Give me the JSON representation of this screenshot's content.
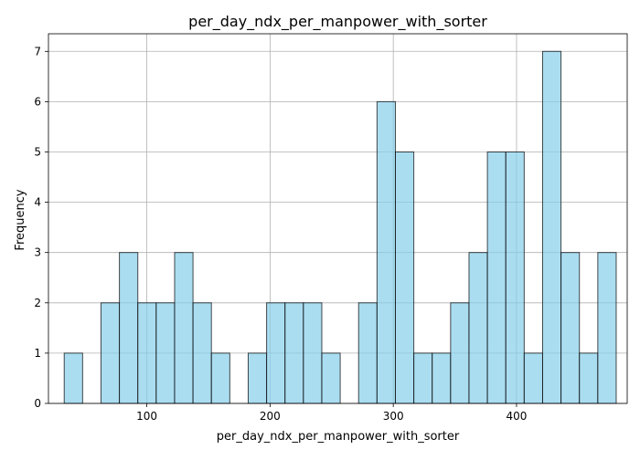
{
  "chart_data": {
    "type": "bar",
    "title": "per_day_ndx_per_manpower_with_sorter",
    "xlabel": "per_day_ndx_per_manpower_with_sorter",
    "ylabel": "Frequency",
    "xlim": [
      20.2,
      489.8
    ],
    "ylim": [
      0,
      7.35
    ],
    "xticks": [
      100,
      200,
      300,
      400
    ],
    "yticks": [
      0,
      1,
      2,
      3,
      4,
      5,
      6,
      7
    ],
    "grid": true,
    "bin_edges": [
      32.98,
      47.91,
      62.84,
      77.77,
      92.7,
      107.63,
      122.56,
      137.49,
      152.42,
      167.35,
      182.28,
      197.21,
      212.14,
      227.07,
      242.0,
      256.93,
      271.86,
      286.79,
      301.72,
      316.65,
      331.58,
      346.51,
      361.44,
      376.37,
      391.3,
      406.23,
      421.16,
      436.09,
      451.02,
      465.95,
      480.88
    ],
    "values": [
      1,
      0,
      2,
      3,
      2,
      2,
      3,
      2,
      1,
      0,
      1,
      2,
      2,
      2,
      1,
      0,
      2,
      6,
      5,
      1,
      1,
      2,
      3,
      5,
      5,
      1,
      7,
      3,
      1,
      3
    ],
    "colors": {
      "bar_fill": "#87CEEB",
      "bar_edge": "#000000",
      "grid": "#b0b0b0",
      "axis": "#000000"
    }
  }
}
